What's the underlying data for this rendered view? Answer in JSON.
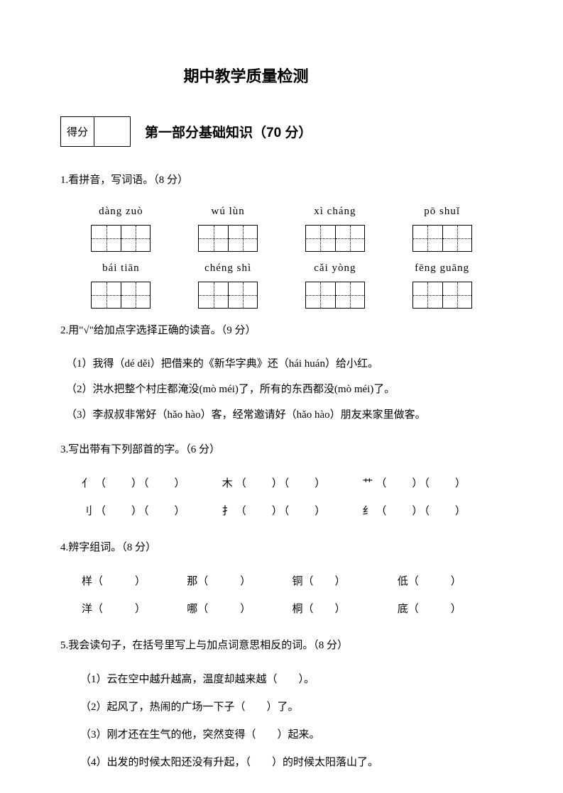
{
  "title": "期中教学质量检测",
  "score_label": "得分",
  "section_title": "第一部分基础知识（70 分）",
  "q1": {
    "text": "1.看拼音，写词语。（8 分）",
    "row1": [
      {
        "pinyin": "dàng zuò"
      },
      {
        "pinyin": "wú lùn"
      },
      {
        "pinyin": "xì cháng"
      },
      {
        "pinyin": "pō shuǐ"
      }
    ],
    "row2": [
      {
        "pinyin": "bái tiān"
      },
      {
        "pinyin": "chéng shì"
      },
      {
        "pinyin": "cǎi yòng"
      },
      {
        "pinyin": "fēng guāng"
      }
    ]
  },
  "q2": {
    "text": "2.用\"√\"给加点字选择正确的读音。（9 分）",
    "items": [
      "（1）我得（dé  děi）把借来的《新华字典》还（hái  huán）给小红。",
      "（2）洪水把整个村庄都淹没(mò  méi)了，所有的东西都没(mò  méi)了。",
      "（3）李叔叔非常好（hǎo  hào）客，经常邀请好（hǎo  hào）朋友来家里做客。"
    ]
  },
  "q3": {
    "text": "3.写出带有下列部首的字。（6 分）",
    "row1": [
      "亻",
      "木",
      "艹"
    ],
    "row2": [
      "刂",
      "扌",
      "纟"
    ]
  },
  "q4": {
    "text": "4.辨字组词。（8 分）",
    "row1": [
      "样",
      "那",
      "铜",
      "低"
    ],
    "row2": [
      "洋",
      "哪",
      "桐",
      "底"
    ]
  },
  "q5": {
    "text": "5.我会读句子，在括号里写上与加点词意思相反的词。（8 分）",
    "items": [
      "（1）云在空中越升越高，温度却越来越（　　）。",
      "（2）起风了，热闹的广场一下子（　　）了。",
      "（3）刚才还在生气的他，突然变得（　　）起来。",
      "（4）出发的时候太阳还没有升起，（　　）的时候太阳落山了。"
    ]
  }
}
